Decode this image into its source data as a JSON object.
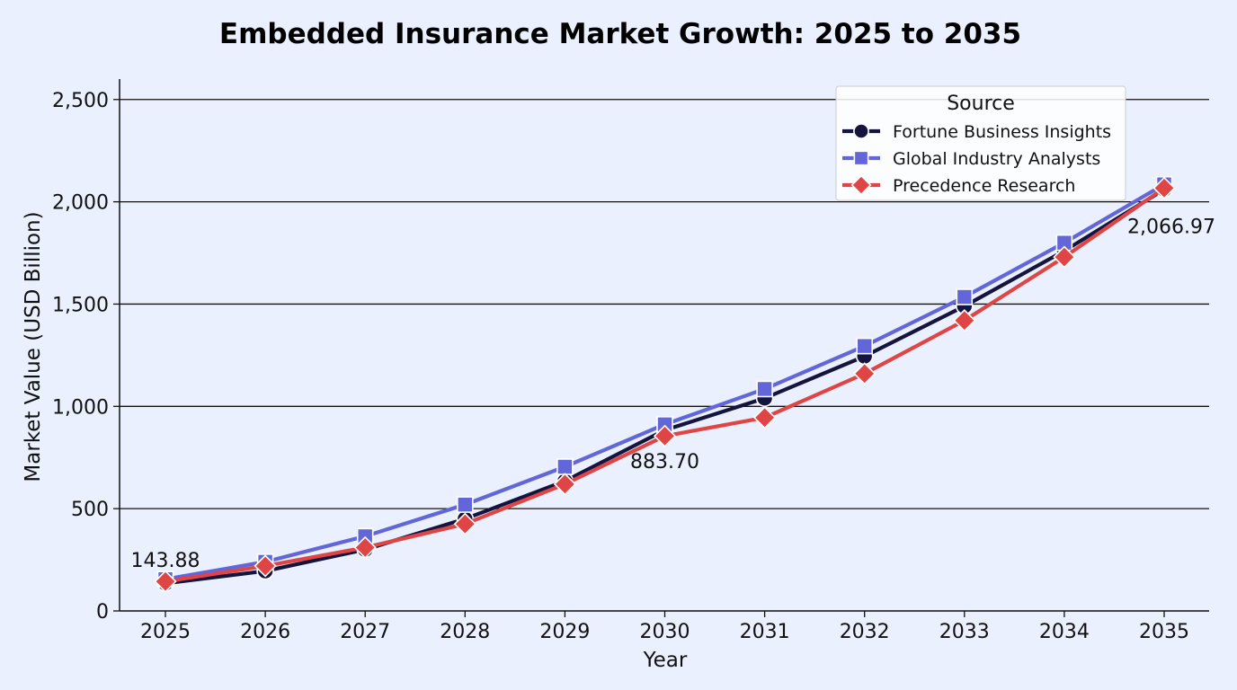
{
  "chart_data": {
    "type": "line",
    "title": "Embedded Insurance Market Growth: 2025 to 2035",
    "xlabel": "Year",
    "ylabel": "Market Value (USD Billion)",
    "x": [
      "2025",
      "2026",
      "2027",
      "2028",
      "2029",
      "2030",
      "2031",
      "2032",
      "2033",
      "2034",
      "2035"
    ],
    "ylim": [
      0,
      2600
    ],
    "yticks": [
      0,
      500,
      1000,
      1500,
      2000,
      2500
    ],
    "ytick_labels": [
      "0",
      "500",
      "1,000",
      "1,500",
      "2,000",
      "2,500"
    ],
    "grid": "horizontal",
    "legend": {
      "title": "Source",
      "placement": "top-right"
    },
    "series": [
      {
        "name": "Fortune Business Insights",
        "color": "#14143f",
        "marker": "circle",
        "values": [
          135,
          195,
          300,
          450,
          635,
          883.7,
          1040,
          1245,
          1490,
          1760,
          2060
        ]
      },
      {
        "name": "Global Industry Analysts",
        "color": "#6266d8",
        "marker": "square",
        "values": [
          155,
          240,
          365,
          520,
          705,
          912,
          1085,
          1295,
          1535,
          1800,
          2085
        ]
      },
      {
        "name": "Precedence Research",
        "color": "#df4545",
        "marker": "diamond",
        "values": [
          143.88,
          220,
          310,
          425,
          620,
          855,
          945,
          1160,
          1420,
          1730,
          2066.97
        ]
      }
    ],
    "annotations": [
      {
        "text": "143.88",
        "x": "2025",
        "y": 143.88
      },
      {
        "text": "883.70",
        "x": "2030",
        "y": 883.7
      },
      {
        "text": "2,066.97",
        "x": "2035",
        "y": 2066.97
      }
    ]
  }
}
